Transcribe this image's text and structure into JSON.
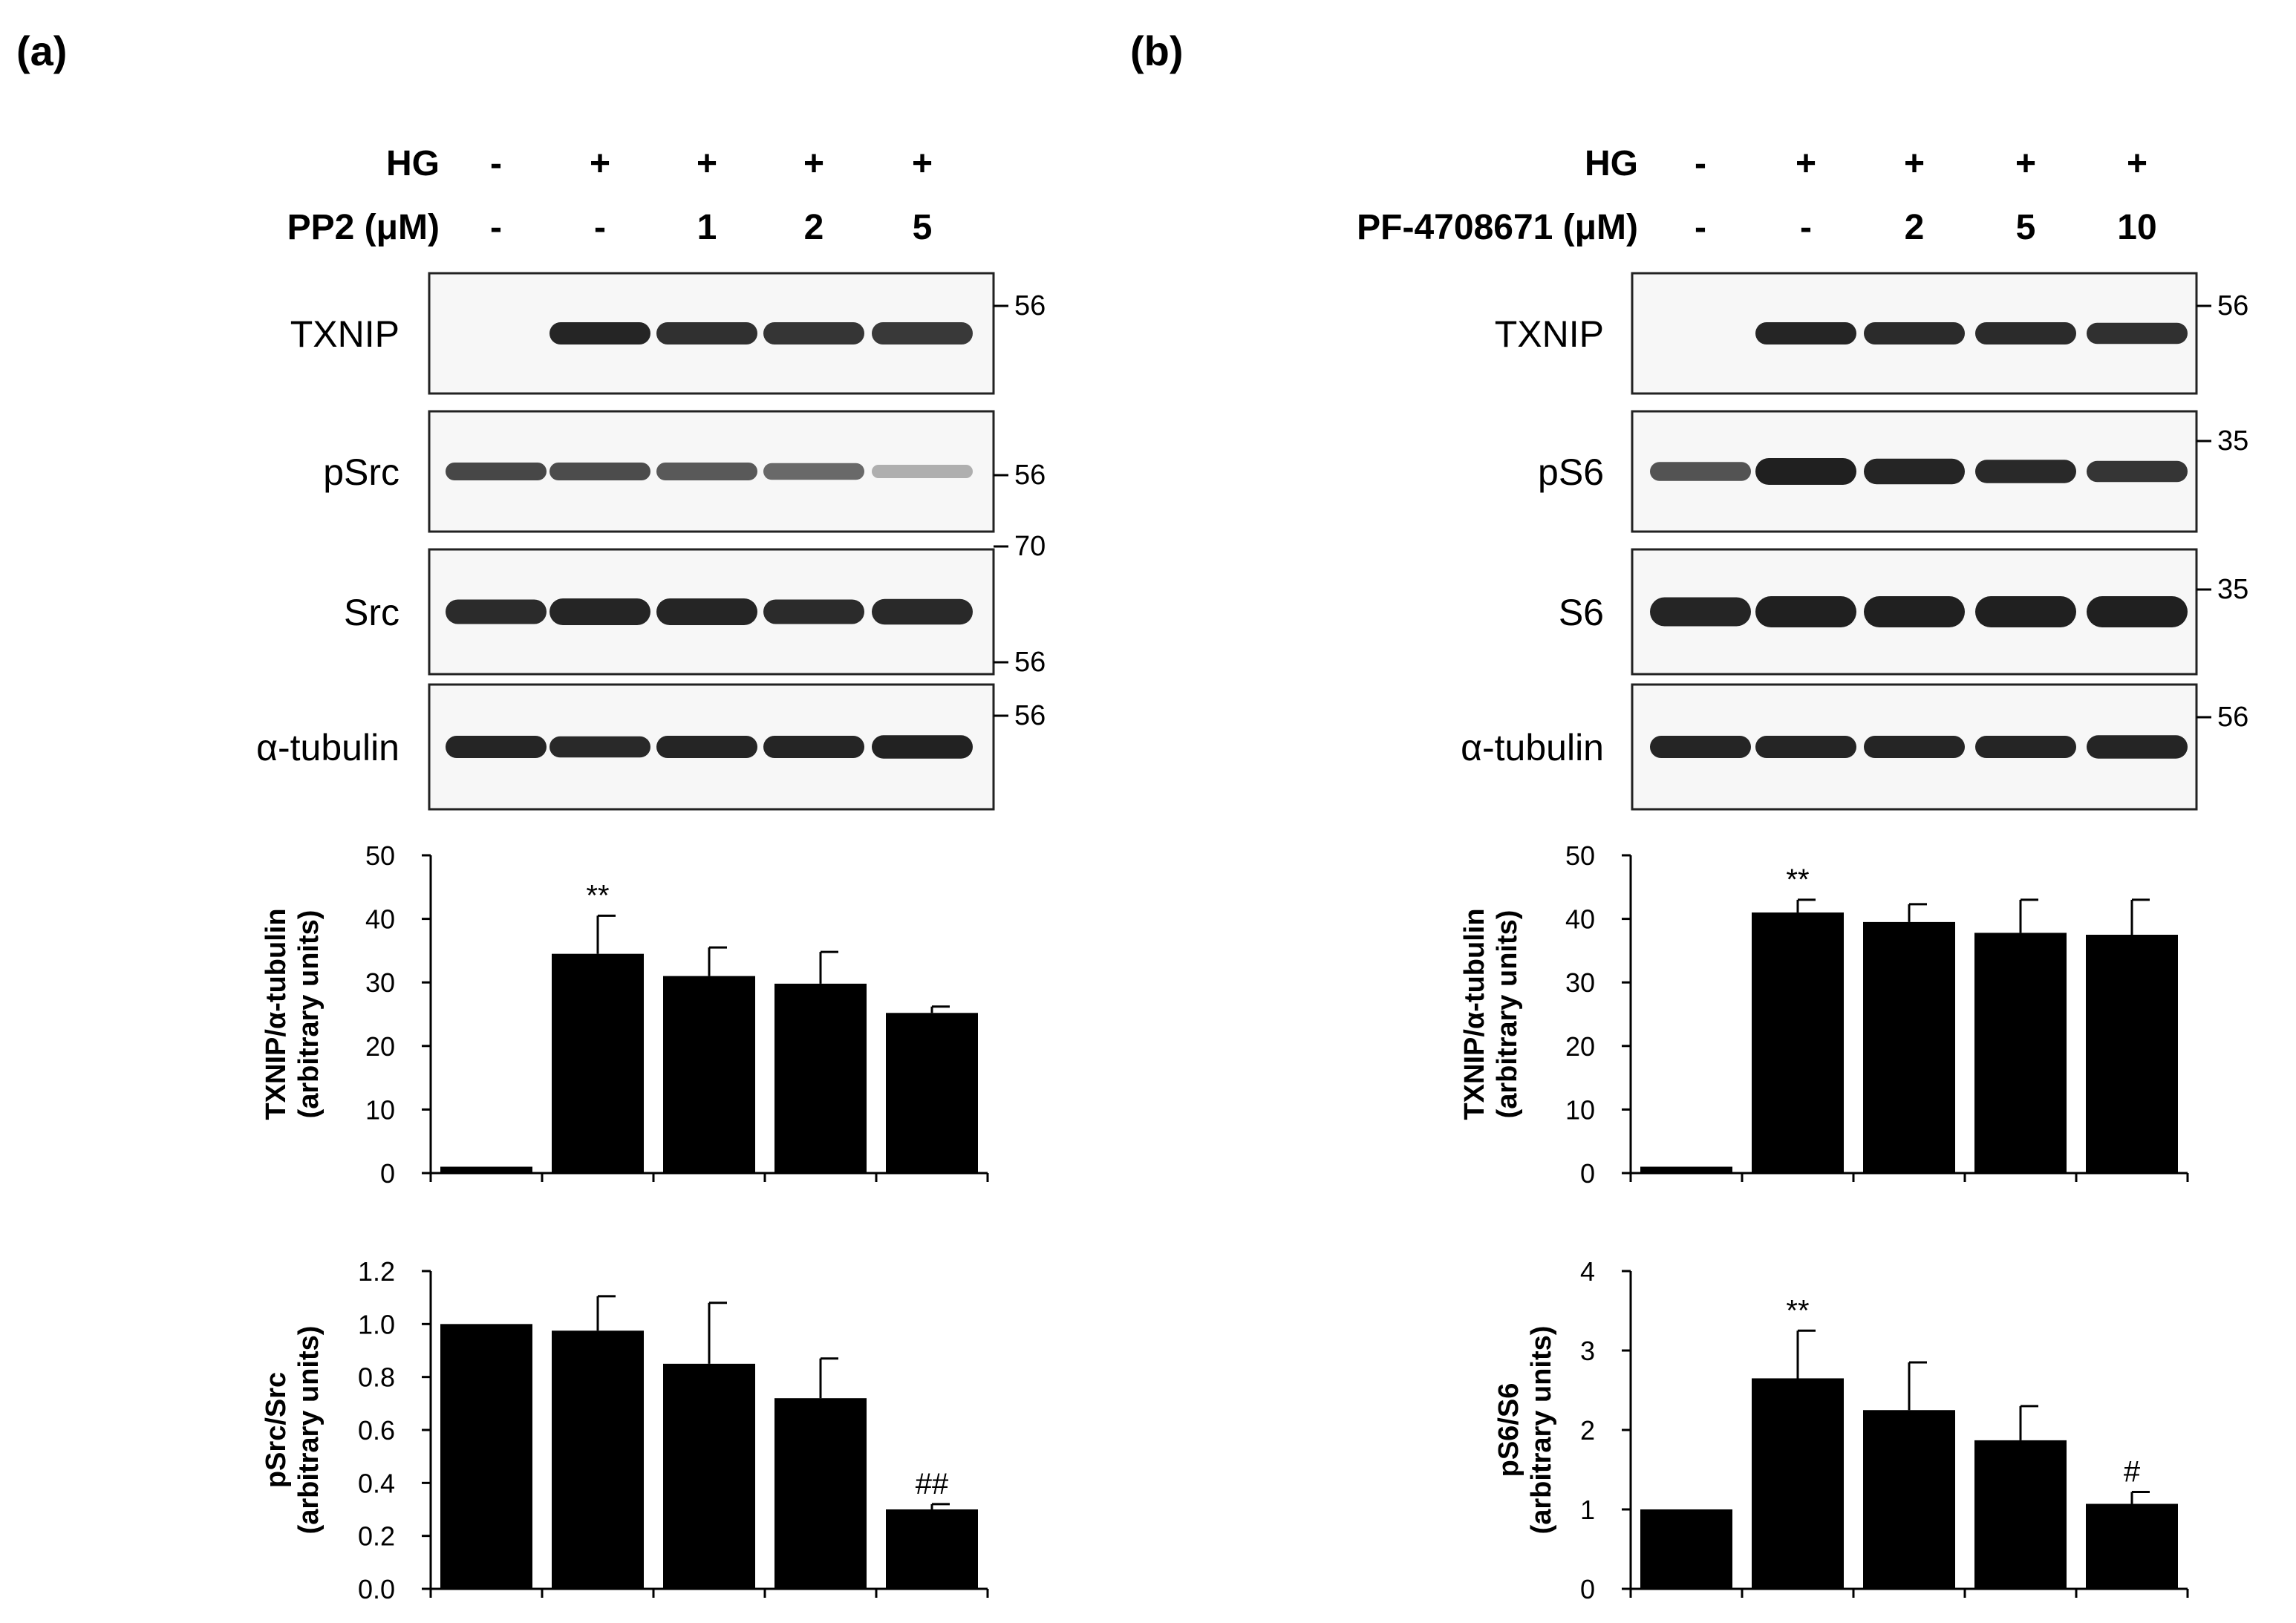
{
  "panels": [
    {
      "label": "(a)",
      "treatments": [
        {
          "name": "HG",
          "values": [
            "-",
            "+",
            "+",
            "+",
            "+"
          ]
        },
        {
          "name": "PP2 (μM)",
          "values": [
            "-",
            "-",
            "1",
            "2",
            "5"
          ]
        }
      ],
      "blots": [
        {
          "label": "TXNIP",
          "intensity": [
            0.0,
            0.95,
            0.9,
            0.88,
            0.86
          ],
          "band_height": [
            1,
            1,
            1,
            1,
            1
          ],
          "markers": [
            "56"
          ]
        },
        {
          "label": "pSrc",
          "intensity": [
            0.8,
            0.78,
            0.72,
            0.65,
            0.35
          ],
          "band_height": [
            0.8,
            0.8,
            0.8,
            0.75,
            0.6
          ],
          "markers": [
            "56"
          ]
        },
        {
          "label": "Src",
          "intensity": [
            0.92,
            0.95,
            0.95,
            0.92,
            0.93
          ],
          "band_height": [
            1.1,
            1.2,
            1.2,
            1.1,
            1.15
          ],
          "markers": [
            "70",
            "56"
          ]
        },
        {
          "label": "α-tubulin",
          "intensity": [
            0.95,
            0.93,
            0.95,
            0.95,
            0.96
          ],
          "band_height": [
            1.0,
            0.95,
            1.0,
            1.0,
            1.05
          ],
          "markers": [
            "56"
          ]
        }
      ],
      "charts": [
        {
          "type": "bar",
          "ylabel": [
            "TXNIP/α-tubulin",
            "(arbitrary units)"
          ],
          "ylim": [
            0,
            50
          ],
          "yticks": [
            "0",
            "10",
            "20",
            "30",
            "40",
            "50"
          ],
          "values": [
            1,
            34.5,
            31,
            29.8,
            25.2
          ],
          "errors": [
            0,
            6,
            4.5,
            5,
            1
          ],
          "annotations": [
            "",
            "**",
            "",
            "",
            ""
          ]
        },
        {
          "type": "bar",
          "ylabel": [
            "pSrc/Src",
            "(arbitrary units)"
          ],
          "ylim": [
            0,
            1.2
          ],
          "yticks": [
            "0.0",
            "0.2",
            "0.4",
            "0.6",
            "0.8",
            "1.0",
            "1.2"
          ],
          "values": [
            1.0,
            0.975,
            0.85,
            0.72,
            0.3
          ],
          "errors": [
            0,
            0.13,
            0.23,
            0.15,
            0.02
          ],
          "annotations": [
            "",
            "",
            "",
            "",
            "##"
          ]
        }
      ]
    },
    {
      "label": "(b)",
      "treatments": [
        {
          "name": "HG",
          "values": [
            "-",
            "+",
            "+",
            "+",
            "+"
          ]
        },
        {
          "name": "PF-4708671 (μM)",
          "values": [
            "-",
            "-",
            "2",
            "5",
            "10"
          ]
        }
      ],
      "blots": [
        {
          "label": "TXNIP",
          "intensity": [
            0.0,
            0.95,
            0.92,
            0.92,
            0.9
          ],
          "band_height": [
            1,
            1,
            1,
            1,
            0.95
          ],
          "markers": [
            "56"
          ]
        },
        {
          "label": "pS6",
          "intensity": [
            0.75,
            0.97,
            0.95,
            0.93,
            0.88
          ],
          "band_height": [
            0.85,
            1.2,
            1.15,
            1.05,
            0.95
          ],
          "markers": [
            "35"
          ]
        },
        {
          "label": "S6",
          "intensity": [
            0.95,
            0.97,
            0.97,
            0.97,
            0.97
          ],
          "band_height": [
            1.3,
            1.4,
            1.4,
            1.4,
            1.4
          ],
          "markers": [
            "35"
          ]
        },
        {
          "label": "α-tubulin",
          "intensity": [
            0.95,
            0.95,
            0.95,
            0.95,
            0.95
          ],
          "band_height": [
            1,
            1,
            1,
            1,
            1.05
          ],
          "markers": [
            "56"
          ]
        }
      ],
      "charts": [
        {
          "type": "bar",
          "ylabel": [
            "TXNIP/α-tubulin",
            "(arbitrary units)"
          ],
          "ylim": [
            0,
            50
          ],
          "yticks": [
            "0",
            "10",
            "20",
            "30",
            "40",
            "50"
          ],
          "values": [
            1,
            41,
            39.5,
            37.8,
            37.5
          ],
          "errors": [
            0,
            2,
            2.8,
            5.2,
            5.5
          ],
          "annotations": [
            "",
            "**",
            "",
            "",
            ""
          ]
        },
        {
          "type": "bar",
          "ylabel": [
            "pS6/S6",
            "(arbitrary units)"
          ],
          "ylim": [
            0,
            4
          ],
          "yticks": [
            "0",
            "1",
            "2",
            "3",
            "4"
          ],
          "values": [
            1.0,
            2.65,
            2.25,
            1.87,
            1.07
          ],
          "errors": [
            0,
            0.6,
            0.6,
            0.43,
            0.15
          ],
          "annotations": [
            "",
            "**",
            "",
            "",
            "#"
          ]
        }
      ]
    }
  ]
}
